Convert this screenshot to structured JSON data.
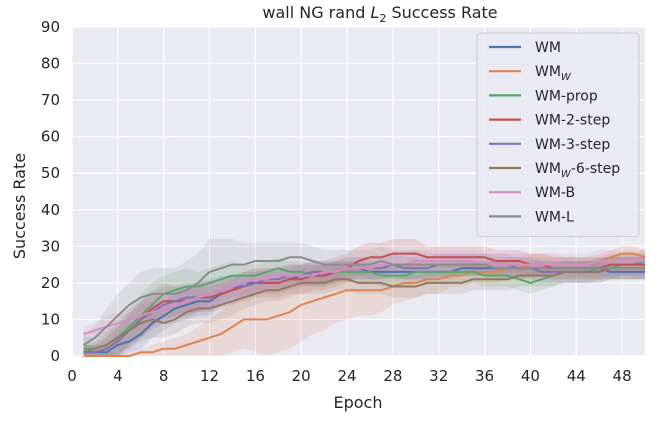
{
  "chart_data": {
    "type": "line",
    "title_prefix": "wall NG rand ",
    "title_var": "L",
    "title_sub": "2",
    "title_suffix": " Success Rate",
    "xlabel": "Epoch",
    "ylabel": "Success Rate",
    "xlim": [
      0,
      50
    ],
    "ylim": [
      0,
      90
    ],
    "xticks": [
      0,
      4,
      8,
      12,
      16,
      20,
      24,
      28,
      32,
      36,
      40,
      44,
      48
    ],
    "yticks": [
      0,
      10,
      20,
      30,
      40,
      50,
      60,
      70,
      80,
      90
    ],
    "grid": true,
    "legend_position": "upper-right",
    "x": [
      1,
      2,
      3,
      4,
      5,
      6,
      7,
      8,
      9,
      10,
      11,
      12,
      13,
      14,
      15,
      16,
      17,
      18,
      19,
      20,
      21,
      22,
      23,
      24,
      25,
      26,
      27,
      28,
      29,
      30,
      31,
      32,
      33,
      34,
      35,
      36,
      37,
      38,
      39,
      40,
      41,
      42,
      43,
      44,
      45,
      46,
      47,
      48,
      49,
      50
    ],
    "series": [
      {
        "name": "WM",
        "name_sub": "",
        "name_suffix": "",
        "color": "#4c72b0",
        "values": [
          1,
          1,
          1,
          3,
          4,
          6,
          9,
          11,
          13,
          14,
          15,
          15,
          17,
          18,
          20,
          20,
          20,
          20,
          21,
          22,
          22,
          22,
          23,
          24,
          24,
          23,
          23,
          23,
          23,
          23,
          23,
          23,
          23,
          24,
          24,
          24,
          24,
          24,
          24,
          24,
          24,
          24,
          24,
          24,
          24,
          24,
          23,
          23,
          23,
          23
        ],
        "band": [
          2,
          2,
          2,
          3,
          3,
          4,
          4,
          4,
          4,
          4,
          4,
          4,
          3,
          3,
          3,
          3,
          3,
          3,
          3,
          3,
          3,
          3,
          3,
          2,
          2,
          2,
          2,
          2,
          2,
          2,
          2,
          2,
          2,
          2,
          2,
          2,
          2,
          2,
          2,
          2,
          2,
          2,
          2,
          2,
          2,
          2,
          2,
          2,
          2,
          2
        ]
      },
      {
        "name": "WM",
        "name_sub": "W",
        "name_suffix": "",
        "color": "#dd8452",
        "values": [
          0,
          0,
          0,
          0,
          0,
          1,
          1,
          2,
          2,
          3,
          4,
          5,
          6,
          8,
          10,
          10,
          10,
          11,
          12,
          14,
          15,
          16,
          17,
          18,
          18,
          18,
          18,
          19,
          20,
          20,
          21,
          21,
          22,
          22,
          23,
          23,
          23,
          24,
          24,
          25,
          25,
          25,
          25,
          25,
          25,
          26,
          27,
          28,
          28,
          27
        ],
        "band": [
          1,
          1,
          1,
          1,
          1,
          1,
          2,
          2,
          3,
          3,
          4,
          5,
          6,
          7,
          8,
          9,
          10,
          10,
          10,
          10,
          9,
          9,
          8,
          8,
          7,
          7,
          6,
          5,
          5,
          4,
          4,
          4,
          3,
          3,
          3,
          3,
          3,
          3,
          3,
          3,
          3,
          3,
          2,
          2,
          2,
          2,
          2,
          2,
          2,
          2
        ]
      },
      {
        "name": "WM-prop",
        "name_sub": "",
        "name_suffix": "",
        "color": "#55a868",
        "values": [
          2,
          2,
          3,
          5,
          8,
          11,
          14,
          17,
          18,
          19,
          19,
          20,
          21,
          22,
          22,
          22,
          23,
          24,
          23,
          23,
          22,
          22,
          23,
          23,
          23,
          23,
          22,
          22,
          22,
          23,
          23,
          23,
          23,
          23,
          23,
          22,
          22,
          22,
          21,
          20,
          21,
          22,
          23,
          23,
          23,
          24,
          24,
          25,
          25,
          26
        ],
        "band": [
          3,
          3,
          4,
          5,
          5,
          6,
          6,
          5,
          5,
          5,
          4,
          4,
          4,
          4,
          3,
          3,
          3,
          3,
          3,
          3,
          3,
          3,
          3,
          3,
          3,
          3,
          3,
          3,
          3,
          3,
          3,
          3,
          3,
          3,
          3,
          3,
          3,
          3,
          3,
          3,
          3,
          3,
          3,
          3,
          3,
          3,
          3,
          3,
          3,
          3
        ]
      },
      {
        "name": "WM-2-step",
        "name_sub": "",
        "name_suffix": "",
        "color": "#c44e52",
        "values": [
          1,
          1,
          2,
          4,
          7,
          10,
          13,
          15,
          15,
          15,
          16,
          16,
          17,
          18,
          19,
          20,
          20,
          20,
          21,
          21,
          22,
          22,
          23,
          24,
          26,
          27,
          27,
          28,
          28,
          28,
          27,
          27,
          27,
          27,
          27,
          27,
          26,
          26,
          26,
          25,
          25,
          24,
          24,
          24,
          24,
          24,
          25,
          25,
          25,
          25
        ],
        "band": [
          2,
          2,
          3,
          4,
          5,
          5,
          5,
          5,
          4,
          4,
          4,
          4,
          4,
          4,
          4,
          4,
          4,
          4,
          4,
          4,
          4,
          4,
          4,
          4,
          4,
          4,
          4,
          4,
          4,
          4,
          3,
          3,
          3,
          3,
          3,
          3,
          3,
          3,
          3,
          3,
          3,
          3,
          3,
          3,
          3,
          3,
          3,
          3,
          3,
          3
        ]
      },
      {
        "name": "WM-3-step",
        "name_sub": "",
        "name_suffix": "",
        "color": "#8172b3",
        "values": [
          1,
          1,
          2,
          4,
          7,
          10,
          12,
          14,
          15,
          16,
          16,
          17,
          18,
          19,
          19,
          20,
          21,
          21,
          22,
          22,
          23,
          23,
          23,
          24,
          24,
          24,
          24,
          25,
          24,
          24,
          24,
          25,
          25,
          25,
          25,
          25,
          25,
          25,
          24,
          24,
          23,
          23,
          23,
          23,
          23,
          23,
          24,
          24,
          24,
          24
        ],
        "band": [
          2,
          2,
          3,
          4,
          4,
          5,
          5,
          5,
          4,
          4,
          4,
          4,
          4,
          3,
          3,
          3,
          3,
          3,
          3,
          3,
          3,
          3,
          3,
          3,
          3,
          3,
          3,
          3,
          3,
          3,
          3,
          3,
          3,
          3,
          3,
          3,
          3,
          3,
          3,
          3,
          3,
          3,
          3,
          3,
          3,
          3,
          3,
          3,
          3,
          3
        ]
      },
      {
        "name": "WM",
        "name_sub": "W",
        "name_suffix": "-6-step",
        "color": "#937860",
        "values": [
          1,
          2,
          3,
          5,
          7,
          9,
          10,
          9,
          10,
          12,
          13,
          13,
          14,
          15,
          16,
          17,
          18,
          18,
          19,
          20,
          20,
          20,
          21,
          21,
          20,
          20,
          20,
          19,
          19,
          19,
          20,
          20,
          20,
          20,
          21,
          21,
          21,
          21,
          22,
          22,
          22,
          22,
          23,
          23,
          23,
          23,
          24,
          24,
          24,
          24
        ],
        "band": [
          2,
          2,
          3,
          4,
          5,
          5,
          5,
          4,
          4,
          4,
          4,
          4,
          4,
          4,
          3,
          3,
          3,
          3,
          3,
          3,
          3,
          3,
          3,
          3,
          3,
          3,
          3,
          3,
          3,
          3,
          3,
          3,
          3,
          3,
          3,
          3,
          3,
          3,
          3,
          3,
          3,
          3,
          3,
          3,
          3,
          3,
          3,
          3,
          3,
          3
        ]
      },
      {
        "name": "WM-B",
        "name_sub": "",
        "name_suffix": "",
        "color": "#da8bc3",
        "values": [
          6,
          7,
          8,
          9,
          10,
          11,
          12,
          13,
          14,
          15,
          16,
          17,
          18,
          19,
          20,
          21,
          21,
          22,
          22,
          22,
          22,
          23,
          23,
          24,
          24,
          24,
          25,
          25,
          25,
          26,
          26,
          26,
          26,
          26,
          26,
          25,
          25,
          25,
          25,
          25,
          25,
          25,
          25,
          25,
          25,
          26,
          26,
          26,
          26,
          26
        ],
        "band": [
          2,
          2,
          3,
          3,
          3,
          4,
          4,
          4,
          4,
          4,
          4,
          4,
          3,
          3,
          3,
          3,
          3,
          3,
          3,
          3,
          3,
          3,
          3,
          3,
          3,
          3,
          3,
          3,
          3,
          3,
          3,
          3,
          3,
          3,
          3,
          3,
          3,
          3,
          3,
          3,
          3,
          3,
          3,
          3,
          3,
          3,
          3,
          3,
          3,
          3
        ]
      },
      {
        "name": "WM-L",
        "name_sub": "",
        "name_suffix": "",
        "color": "#8c8c8c",
        "values": [
          3,
          5,
          8,
          11,
          14,
          16,
          17,
          17,
          17,
          18,
          20,
          23,
          24,
          25,
          25,
          26,
          26,
          26,
          27,
          27,
          26,
          25,
          25,
          25,
          25,
          25,
          26,
          25,
          25,
          25,
          25,
          25,
          25,
          25,
          25,
          25,
          24,
          24,
          24,
          24,
          24,
          24,
          24,
          24,
          24,
          24,
          24,
          24,
          24,
          24
        ],
        "band": [
          3,
          3,
          5,
          6,
          6,
          7,
          7,
          7,
          7,
          8,
          8,
          9,
          8,
          7,
          6,
          5,
          5,
          5,
          4,
          4,
          4,
          4,
          4,
          4,
          4,
          4,
          4,
          4,
          4,
          4,
          3,
          3,
          3,
          3,
          3,
          3,
          3,
          3,
          3,
          3,
          3,
          3,
          3,
          3,
          3,
          3,
          3,
          3,
          3,
          3
        ]
      }
    ]
  }
}
